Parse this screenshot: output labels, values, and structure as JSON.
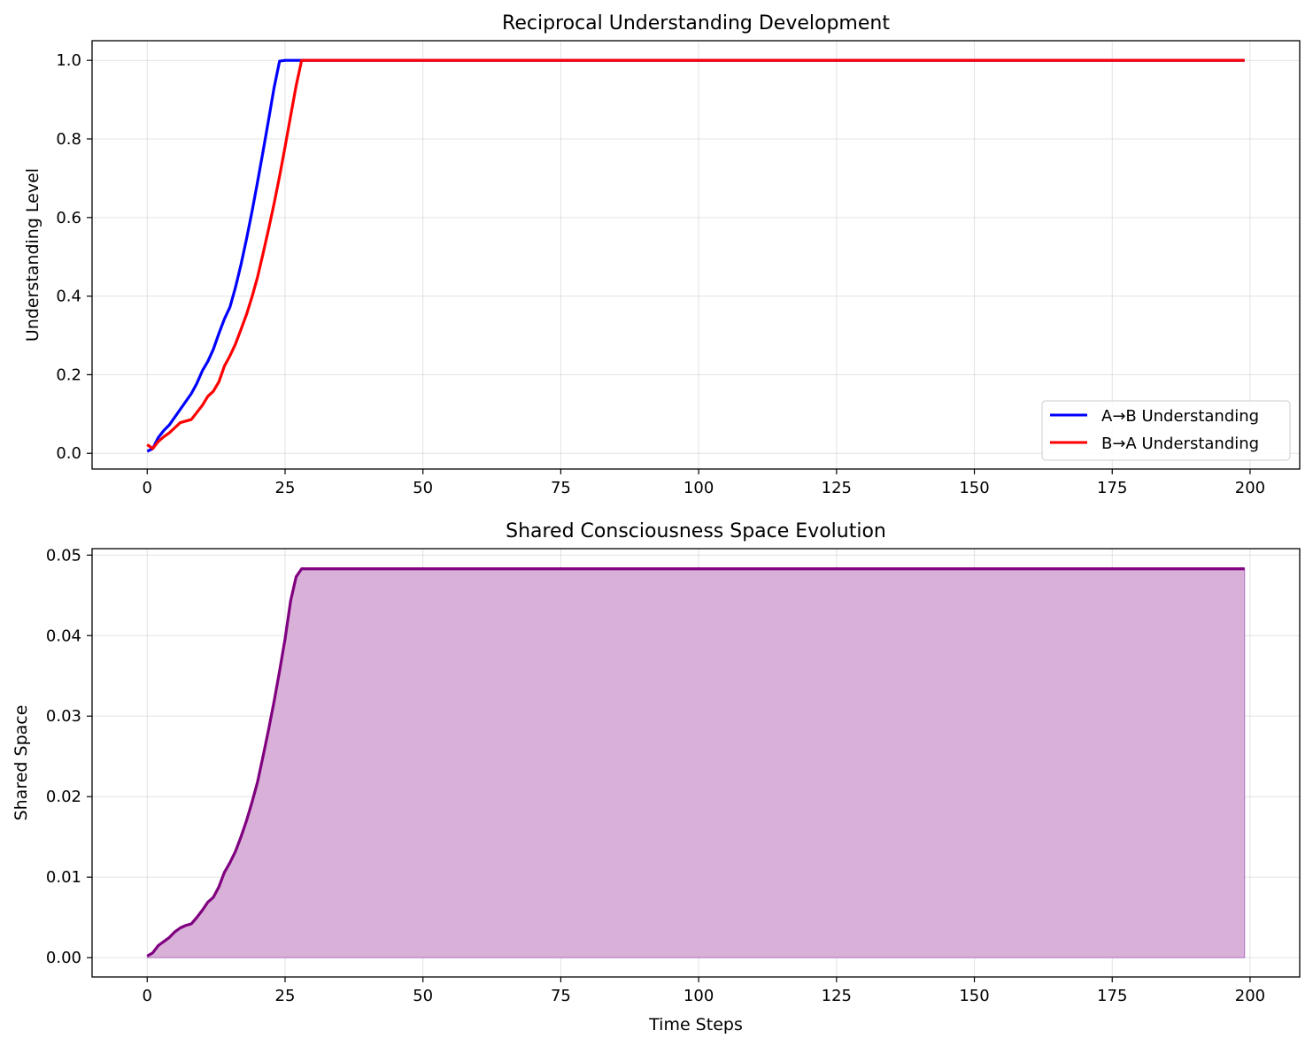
{
  "chart_data": [
    {
      "type": "line",
      "title": "Reciprocal Understanding Development",
      "xlabel": "",
      "ylabel": "Understanding Level",
      "xlim": [
        -10,
        209
      ],
      "ylim": [
        -0.04,
        1.05
      ],
      "x_ticks": [
        0,
        25,
        50,
        75,
        100,
        125,
        150,
        175,
        200
      ],
      "x_tick_labels": [
        "0",
        "25",
        "50",
        "75",
        "100",
        "125",
        "150",
        "175",
        "200"
      ],
      "y_ticks": [
        0.0,
        0.2,
        0.4,
        0.6,
        0.8,
        1.0
      ],
      "y_tick_labels": [
        "0.0",
        "0.2",
        "0.4",
        "0.6",
        "0.8",
        "1.0"
      ],
      "grid": true,
      "legend_position": "lower-right",
      "x": [
        0,
        1,
        2,
        3,
        4,
        5,
        6,
        7,
        8,
        9,
        10,
        11,
        12,
        13,
        14,
        15,
        16,
        17,
        18,
        19,
        20,
        21,
        22,
        23,
        24,
        25,
        26,
        27,
        28,
        199
      ],
      "series": [
        {
          "name": "A→B Understanding",
          "color": "#0000ff",
          "values": [
            0.005,
            0.012,
            0.04,
            0.058,
            0.072,
            0.092,
            0.112,
            0.132,
            0.152,
            0.178,
            0.21,
            0.234,
            0.265,
            0.305,
            0.342,
            0.372,
            0.422,
            0.48,
            0.545,
            0.615,
            0.69,
            0.768,
            0.848,
            0.93,
            0.998,
            1.0,
            1.0,
            1.0,
            1.0,
            1.0
          ]
        },
        {
          "name": "B→A Understanding",
          "color": "#ff0000",
          "values": [
            0.022,
            0.012,
            0.03,
            0.042,
            0.052,
            0.065,
            0.078,
            0.082,
            0.086,
            0.104,
            0.122,
            0.145,
            0.158,
            0.182,
            0.222,
            0.248,
            0.278,
            0.315,
            0.353,
            0.398,
            0.448,
            0.508,
            0.57,
            0.635,
            0.705,
            0.78,
            0.858,
            0.935,
            1.0,
            1.0
          ]
        }
      ]
    },
    {
      "type": "area",
      "title": "Shared Consciousness Space Evolution",
      "xlabel": "Time Steps",
      "ylabel": "Shared Space",
      "xlim": [
        -10,
        209
      ],
      "ylim": [
        -0.0024,
        0.0508
      ],
      "x_ticks": [
        0,
        25,
        50,
        75,
        100,
        125,
        150,
        175,
        200
      ],
      "x_tick_labels": [
        "0",
        "25",
        "50",
        "75",
        "100",
        "125",
        "150",
        "175",
        "200"
      ],
      "y_ticks": [
        0.0,
        0.01,
        0.02,
        0.03,
        0.04,
        0.05
      ],
      "y_tick_labels": [
        "0.00",
        "0.01",
        "0.02",
        "0.03",
        "0.04",
        "0.05"
      ],
      "grid": true,
      "x": [
        0,
        1,
        2,
        3,
        4,
        5,
        6,
        7,
        8,
        9,
        10,
        11,
        12,
        13,
        14,
        15,
        16,
        17,
        18,
        19,
        20,
        21,
        22,
        23,
        24,
        25,
        26,
        27,
        28,
        199
      ],
      "series": [
        {
          "color": "#800080",
          "fill_color": "#d8b0d8",
          "values": [
            0.0002,
            0.0006,
            0.0015,
            0.002,
            0.0025,
            0.0032,
            0.0037,
            0.004,
            0.0042,
            0.005,
            0.0059,
            0.0069,
            0.0075,
            0.0088,
            0.0106,
            0.0118,
            0.0132,
            0.015,
            0.017,
            0.0193,
            0.0218,
            0.025,
            0.0283,
            0.0318,
            0.0356,
            0.0396,
            0.0443,
            0.0473,
            0.0483,
            0.0483
          ]
        }
      ]
    }
  ]
}
